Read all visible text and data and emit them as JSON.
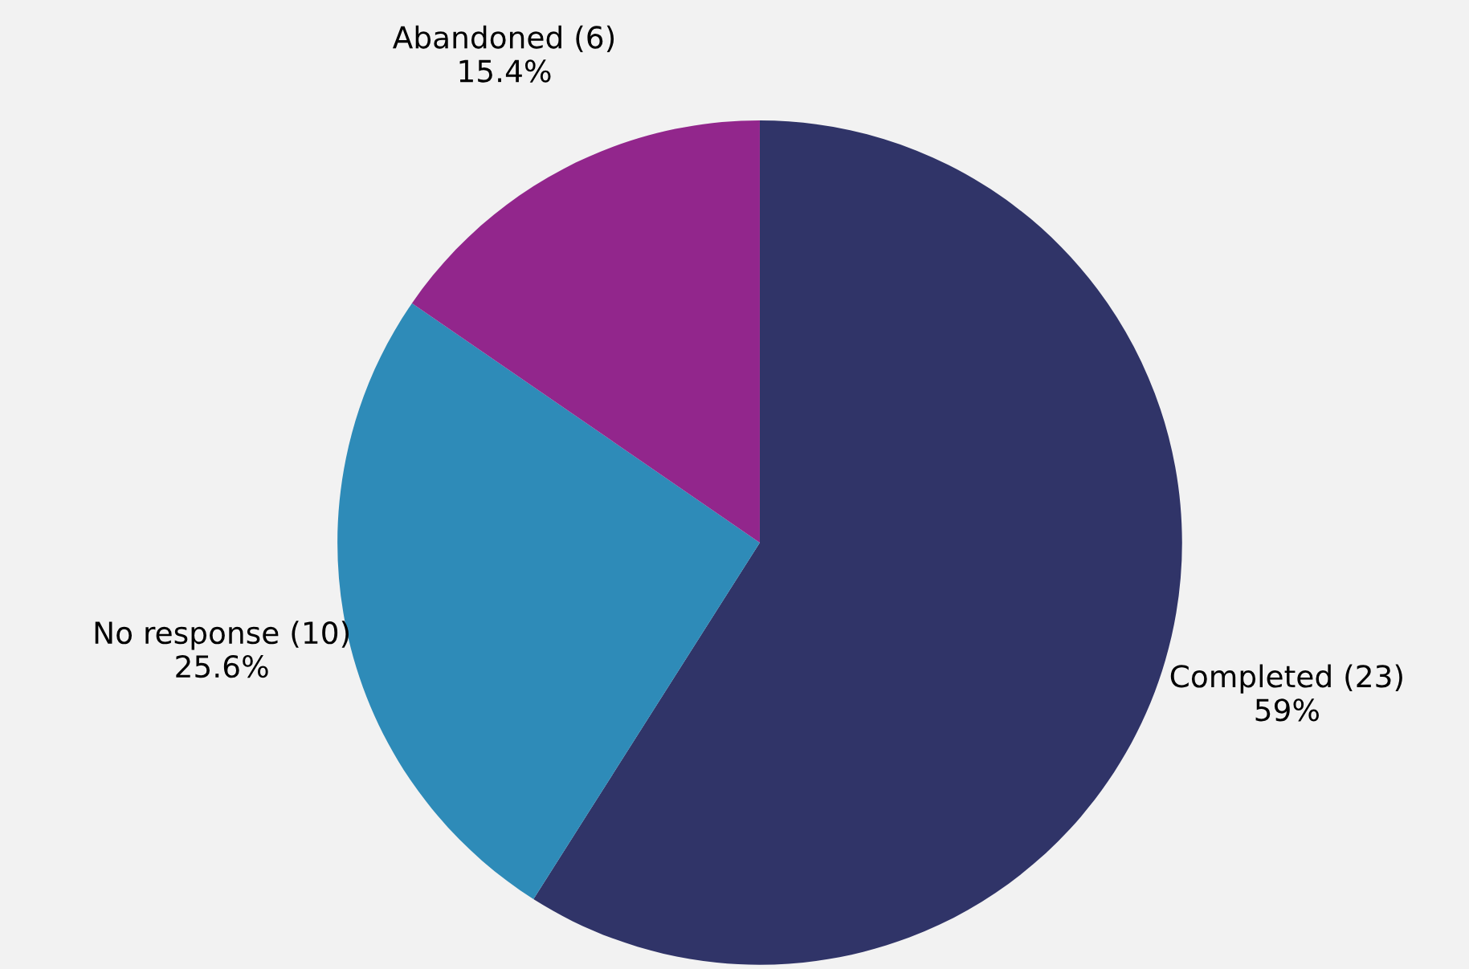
{
  "chart_data": {
    "type": "pie",
    "categories": [
      "Completed (23)",
      "No response (10)",
      "Abandoned (6)"
    ],
    "values": [
      59,
      25.6,
      15.4
    ],
    "value_labels": [
      "59%",
      "25.6%",
      "15.4%"
    ],
    "colors": [
      "#303468",
      "#2e8bb8",
      "#92268c"
    ],
    "legend": false
  }
}
